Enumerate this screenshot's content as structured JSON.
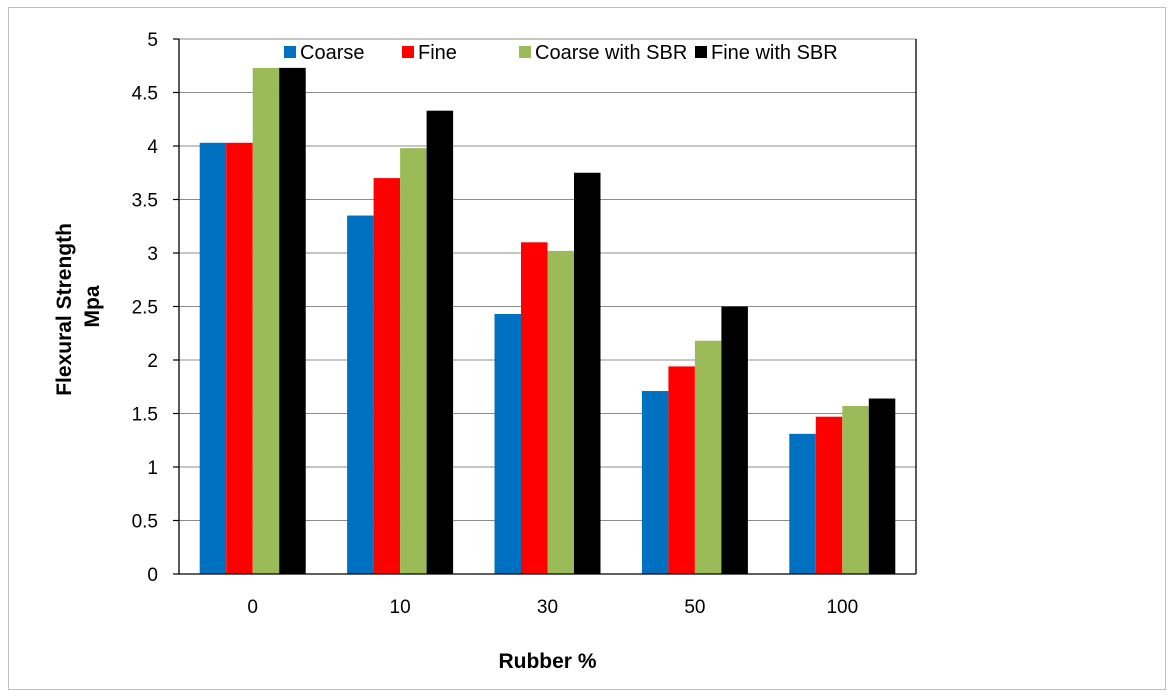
{
  "chart_data": {
    "type": "bar",
    "categories": [
      "0",
      "10",
      "30",
      "50",
      "100"
    ],
    "series": [
      {
        "name": "Coarse",
        "color": "#0070c0",
        "values": [
          4.03,
          3.35,
          2.43,
          1.71,
          1.31
        ]
      },
      {
        "name": "Fine",
        "color": "#ff0000",
        "values": [
          4.03,
          3.7,
          3.1,
          1.94,
          1.47
        ]
      },
      {
        "name": "Coarse with SBR",
        "color": "#9bbb59",
        "values": [
          4.73,
          3.98,
          3.02,
          2.18,
          1.57
        ]
      },
      {
        "name": "Fine with SBR",
        "color": "#000000",
        "values": [
          4.73,
          4.33,
          3.75,
          2.5,
          1.64
        ]
      }
    ],
    "xlabel": "Rubber %",
    "ylabel_lines": [
      "Flexural Strength",
      "Mpa"
    ],
    "ylim": [
      0,
      5
    ],
    "yticks": [
      "0",
      "0.5",
      "1",
      "1.5",
      "2",
      "2.5",
      "3",
      "3.5",
      "4",
      "4.5",
      "5"
    ],
    "grid": "horizontal",
    "legend_position": "top"
  }
}
